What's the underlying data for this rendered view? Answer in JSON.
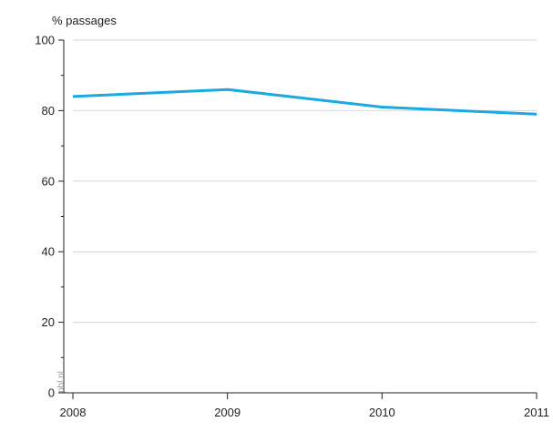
{
  "chart_data": {
    "type": "line",
    "title": "",
    "ylabel": "% passages",
    "xlabel": "",
    "x": [
      2008,
      2009,
      2010,
      2011
    ],
    "x_ticks": [
      "2008",
      "2009",
      "2010",
      "2011"
    ],
    "y_ticks": [
      "0",
      "20",
      "40",
      "60",
      "80",
      "100"
    ],
    "ylim": [
      0,
      100
    ],
    "xlim": [
      2008,
      2011
    ],
    "grid": true,
    "series": [
      {
        "values": [
          84,
          86,
          81,
          79
        ],
        "color": "#1aa9e1"
      }
    ],
    "source_note": "pbl.nl"
  }
}
